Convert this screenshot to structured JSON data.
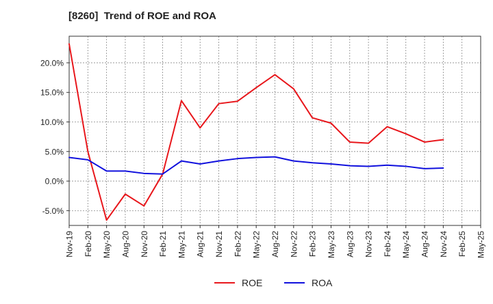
{
  "chart_data": {
    "type": "line",
    "title": "[8260]  Trend of ROE and ROA",
    "xlabel": "",
    "ylabel": "",
    "categories": [
      "Nov-19",
      "Feb-20",
      "May-20",
      "Aug-20",
      "Nov-20",
      "Feb-21",
      "May-21",
      "Aug-21",
      "Nov-21",
      "Feb-22",
      "May-22",
      "Aug-22",
      "Nov-22",
      "Feb-23",
      "May-23",
      "Aug-23",
      "Nov-23",
      "Feb-24",
      "May-24",
      "Aug-24",
      "Nov-24",
      "Feb-25",
      "May-25"
    ],
    "ylim": [
      -7.5,
      24.5
    ],
    "yticks": [
      -5,
      0,
      5,
      10,
      15,
      20
    ],
    "ytick_labels": [
      "-5.0%",
      "0.0%",
      "5.0%",
      "10.0%",
      "15.0%",
      "20.0%"
    ],
    "grid": true,
    "legend_position": "bottom-center",
    "series": [
      {
        "name": "ROE",
        "color": "#e8161b",
        "values": [
          23.2,
          5.0,
          -6.6,
          -2.2,
          -4.2,
          1.2,
          13.6,
          9.0,
          13.1,
          13.5,
          15.8,
          18.0,
          15.6,
          10.7,
          9.8,
          6.6,
          6.4,
          9.2,
          8.0,
          6.6,
          7.0,
          null,
          null
        ]
      },
      {
        "name": "ROA",
        "color": "#1010dd",
        "values": [
          4.0,
          3.6,
          1.7,
          1.7,
          1.3,
          1.2,
          3.4,
          2.9,
          3.4,
          3.8,
          4.0,
          4.1,
          3.4,
          3.1,
          2.9,
          2.6,
          2.5,
          2.7,
          2.5,
          2.1,
          2.2,
          null,
          null
        ]
      }
    ]
  }
}
